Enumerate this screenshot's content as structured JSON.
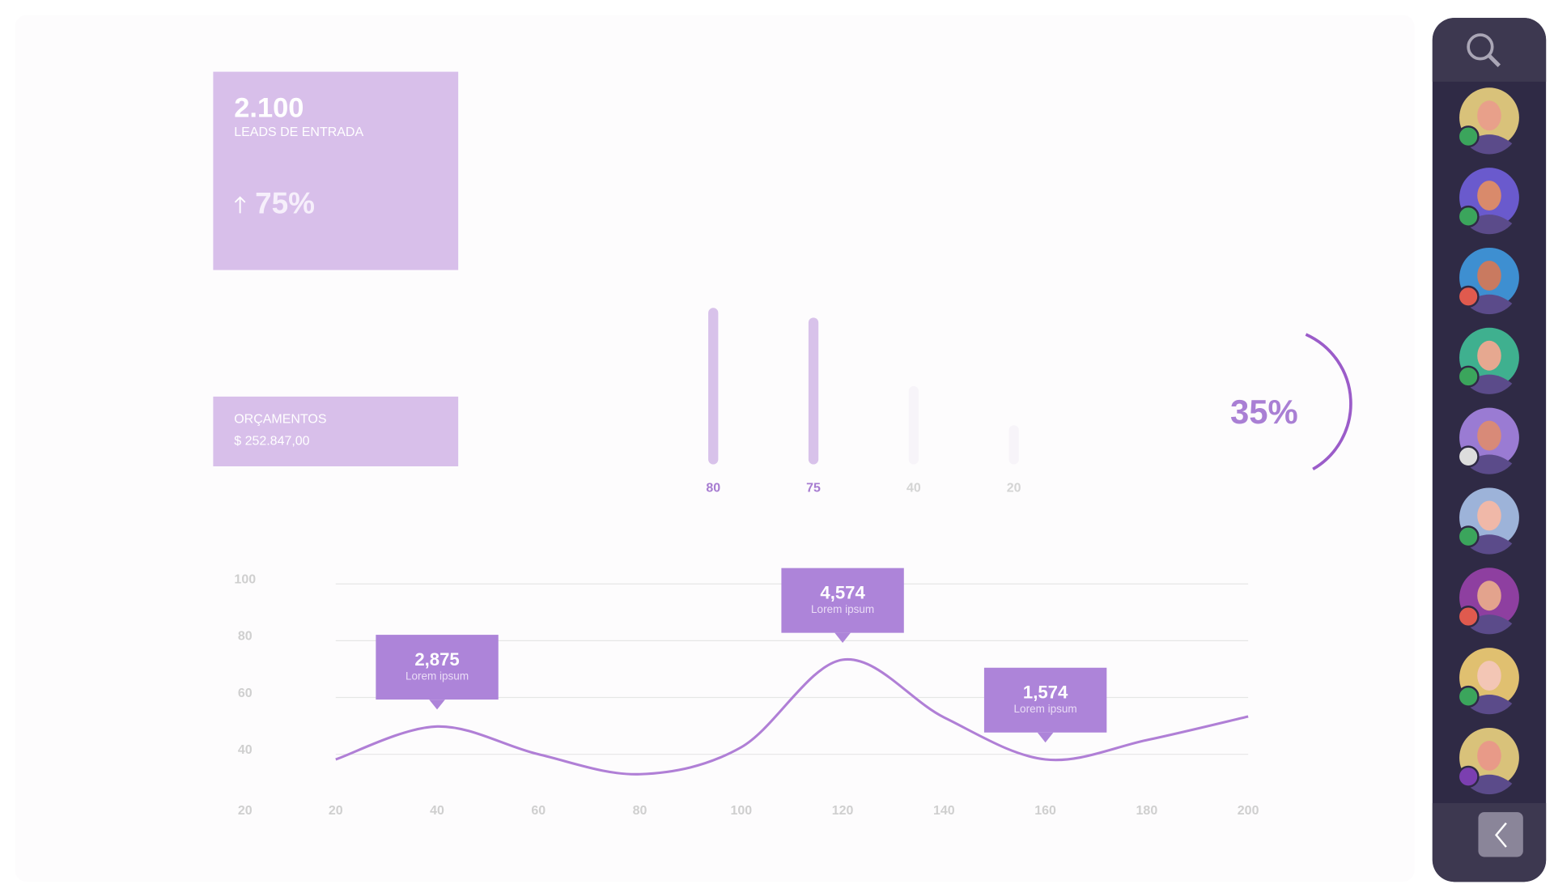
{
  "leads": {
    "value": "2.100",
    "label": "LEADS DE ENTRADA",
    "change": "75%"
  },
  "budget": {
    "label": "ORÇAMENTOS",
    "value": "$ 252.847,00"
  },
  "bar_chart": {
    "type": "bar",
    "values": [
      80,
      75,
      40,
      20
    ],
    "colors": [
      "#d8c2ea",
      "#d8c2ea",
      "#f7f4f9",
      "#f7f4f9"
    ],
    "label_colors": [
      "#a77cd1",
      "#a77cd1",
      "#d4d4d4",
      "#d4d4d4"
    ]
  },
  "gauge": {
    "type": "gauge",
    "value": 35,
    "label": "35%",
    "color": "#9b5cc9"
  },
  "line_chart": {
    "type": "line",
    "x": [
      20,
      40,
      60,
      80,
      100,
      120,
      140,
      160,
      180,
      200
    ],
    "values": [
      38.2,
      49.8,
      40,
      33,
      42.5,
      73.3,
      53,
      38.2,
      45,
      53.3
    ],
    "xlim": [
      20,
      200
    ],
    "xticks": [
      20,
      40,
      60,
      80,
      100,
      120,
      140,
      160,
      180,
      200
    ],
    "ylim": [
      20,
      100
    ],
    "yticks": [
      20,
      40,
      60,
      80,
      100
    ],
    "grid": true,
    "color": "#b07fd6",
    "annotations": [
      {
        "x": 40,
        "value": "2,875",
        "text": "Lorem ipsum"
      },
      {
        "x": 120,
        "value": "4,574",
        "text": "Lorem ipsum"
      },
      {
        "x": 160,
        "value": "1,574",
        "text": "Lorem ipsum"
      }
    ]
  }
}
